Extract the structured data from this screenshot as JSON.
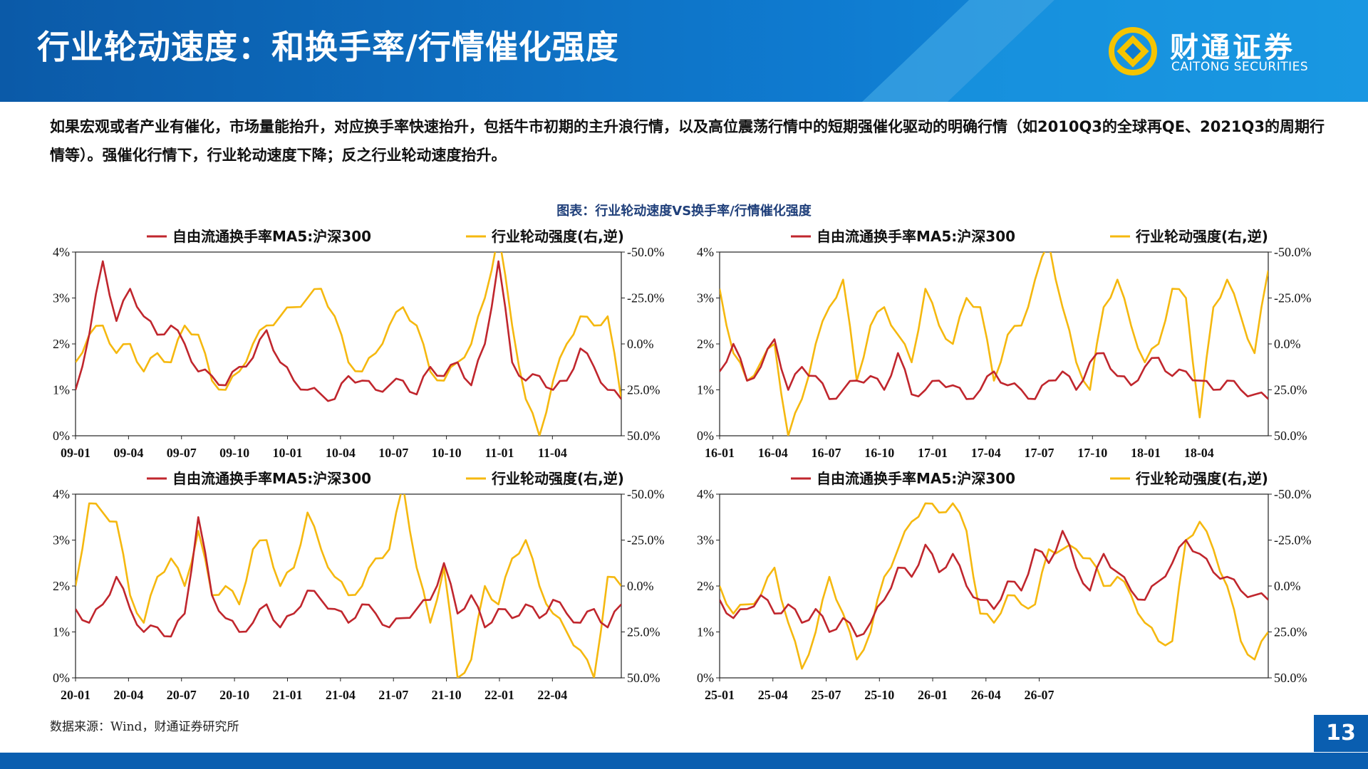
{
  "header": {
    "title": "行业轮动速度：和换手率/行情催化强度",
    "logo_cn": "财通证券",
    "logo_en": "CAITONG SECURITIES"
  },
  "body_text": "如果宏观或者产业有催化，市场量能抬升，对应换手率快速抬升，包括牛市初期的主升浪行情，以及高位震荡行情中的短期强催化驱动的明确行情（如2010Q3的全球再QE、2021Q3的周期行情等）。强催化行情下，行业轮动速度下降；反之行业轮动速度抬升。",
  "figure_title": "图表：行业轮动速度VS换手率/行情催化强度",
  "source": "数据来源：Wind，财通证券研究所",
  "page_number": "13",
  "colors": {
    "brand": "#0a5eb0",
    "turnover": "#c0262d",
    "rotation": "#f5b80f"
  },
  "chart_data": [
    {
      "type": "line",
      "legend": [
        "自由流通换手率MA5:沪深300",
        "行业轮动强度(右,逆)"
      ],
      "left_ticks": [
        "4%",
        "3%",
        "2%",
        "1%",
        "0%"
      ],
      "right_ticks": [
        "-50.0%",
        "-25.0%",
        "0.0%",
        "25.0%",
        "50.0%"
      ],
      "x_ticks": [
        "09-01",
        "09-04",
        "09-07",
        "09-10",
        "10-01",
        "10-04",
        "10-07",
        "10-10",
        "11-01",
        "11-04"
      ],
      "ylim_left": [
        0,
        4
      ],
      "ylim_right": [
        50,
        -50
      ],
      "right_inverted": true,
      "xlim": [
        0,
        40
      ],
      "series": [
        {
          "name": "自由流通换手率MA5:沪深300",
          "axis": "left",
          "x": [
            0,
            1,
            2,
            3,
            4,
            5,
            6,
            7,
            8,
            9,
            10,
            11,
            12,
            13,
            14,
            15,
            16,
            17,
            18,
            19,
            20,
            21,
            22,
            23,
            24,
            25,
            26,
            27,
            28,
            29,
            30,
            31,
            32,
            33,
            34,
            35,
            36,
            37,
            38,
            39,
            40
          ],
          "y": [
            1.0,
            2.2,
            3.8,
            2.5,
            3.2,
            2.6,
            2.2,
            2.4,
            2.0,
            1.4,
            1.3,
            1.1,
            1.5,
            1.7,
            2.3,
            1.6,
            1.2,
            1.0,
            0.9,
            0.8,
            1.3,
            1.2,
            1.0,
            1.1,
            1.2,
            0.9,
            1.5,
            1.3,
            1.6,
            1.1,
            2.0,
            3.8,
            1.6,
            1.2,
            1.3,
            1.0,
            1.2,
            1.9,
            1.5,
            1.0,
            0.8
          ]
        },
        {
          "name": "行业轮动强度(右,逆)",
          "axis": "right",
          "x": [
            0,
            1,
            2,
            3,
            4,
            5,
            6,
            7,
            8,
            9,
            10,
            11,
            12,
            13,
            14,
            15,
            16,
            17,
            18,
            19,
            20,
            21,
            22,
            23,
            24,
            25,
            26,
            27,
            28,
            29,
            30,
            31,
            32,
            33,
            34,
            35,
            36,
            37,
            38,
            39,
            40
          ],
          "y": [
            10,
            -5,
            -10,
            5,
            0,
            15,
            5,
            10,
            -10,
            -5,
            20,
            25,
            15,
            0,
            -10,
            -15,
            -20,
            -25,
            -30,
            -15,
            10,
            15,
            5,
            -10,
            -20,
            -10,
            15,
            20,
            10,
            0,
            -25,
            -60,
            -10,
            30,
            50,
            20,
            0,
            -15,
            -10,
            -15,
            30
          ]
        }
      ]
    },
    {
      "type": "line",
      "legend": [
        "自由流通换手率MA5:沪深300",
        "行业轮动强度(右,逆)"
      ],
      "left_ticks": [
        "4%",
        "3%",
        "2%",
        "1%",
        "0%"
      ],
      "right_ticks": [
        "-50.0%",
        "-25.0%",
        "0.0%",
        "25.0%",
        "50.0%"
      ],
      "x_ticks": [
        "16-01",
        "16-04",
        "16-07",
        "16-10",
        "17-01",
        "17-04",
        "17-07",
        "17-10",
        "18-01",
        "18-04"
      ],
      "ylim_left": [
        0,
        4
      ],
      "ylim_right": [
        50,
        -50
      ],
      "right_inverted": true,
      "xlim": [
        0,
        40
      ],
      "series": [
        {
          "name": "自由流通换手率MA5:沪深300",
          "axis": "left",
          "x": [
            0,
            1,
            2,
            3,
            4,
            5,
            6,
            7,
            8,
            9,
            10,
            11,
            12,
            13,
            14,
            15,
            16,
            17,
            18,
            19,
            20,
            21,
            22,
            23,
            24,
            25,
            26,
            27,
            28,
            29,
            30,
            31,
            32,
            33,
            34,
            35,
            36,
            37,
            38,
            39,
            40
          ],
          "y": [
            1.4,
            2.0,
            1.2,
            1.5,
            2.1,
            1.0,
            1.5,
            1.3,
            0.8,
            1.0,
            1.2,
            1.3,
            1.0,
            1.8,
            0.9,
            1.0,
            1.2,
            1.1,
            0.8,
            1.0,
            1.4,
            1.1,
            1.0,
            0.8,
            1.2,
            1.4,
            1.0,
            1.6,
            1.8,
            1.3,
            1.1,
            1.5,
            1.7,
            1.3,
            1.4,
            1.2,
            1.0,
            1.2,
            1.0,
            0.9,
            0.8
          ]
        },
        {
          "name": "行业轮动强度(右,逆)",
          "axis": "right",
          "x": [
            0,
            1,
            2,
            3,
            4,
            5,
            6,
            7,
            8,
            9,
            10,
            11,
            12,
            13,
            14,
            15,
            16,
            17,
            18,
            19,
            20,
            21,
            22,
            23,
            24,
            25,
            26,
            27,
            28,
            29,
            30,
            31,
            32,
            33,
            34,
            35,
            36,
            37,
            38,
            39,
            40
          ],
          "y": [
            -30,
            5,
            20,
            10,
            0,
            50,
            30,
            0,
            -20,
            -35,
            20,
            -10,
            -20,
            -5,
            10,
            -30,
            -10,
            0,
            -25,
            -20,
            20,
            -5,
            -10,
            -35,
            -55,
            -20,
            10,
            25,
            -20,
            -35,
            -10,
            10,
            0,
            -30,
            -25,
            40,
            -20,
            -35,
            -15,
            5,
            -40
          ]
        }
      ]
    },
    {
      "type": "line",
      "legend": [
        "自由流通换手率MA5:沪深300",
        "行业轮动强度(右,逆)"
      ],
      "left_ticks": [
        "4%",
        "3%",
        "2%",
        "1%",
        "0%"
      ],
      "right_ticks": [
        "-50.0%",
        "-25.0%",
        "0.0%",
        "25.0%",
        "50.0%"
      ],
      "x_ticks": [
        "20-01",
        "20-04",
        "20-07",
        "20-10",
        "21-01",
        "21-04",
        "21-07",
        "21-10",
        "22-01",
        "22-04"
      ],
      "ylim_left": [
        0,
        4
      ],
      "ylim_right": [
        50,
        -50
      ],
      "right_inverted": true,
      "xlim": [
        0,
        40
      ],
      "series": [
        {
          "name": "自由流通换手率MA5:沪深300",
          "axis": "left",
          "x": [
            0,
            1,
            2,
            3,
            4,
            5,
            6,
            7,
            8,
            9,
            10,
            11,
            12,
            13,
            14,
            15,
            16,
            17,
            18,
            19,
            20,
            21,
            22,
            23,
            24,
            25,
            26,
            27,
            28,
            29,
            30,
            31,
            32,
            33,
            34,
            35,
            36,
            37,
            38,
            39,
            40
          ],
          "y": [
            1.5,
            1.2,
            1.6,
            2.2,
            1.5,
            1.0,
            1.1,
            0.9,
            1.4,
            3.5,
            1.8,
            1.3,
            1.0,
            1.2,
            1.6,
            1.1,
            1.4,
            1.9,
            1.7,
            1.5,
            1.2,
            1.6,
            1.4,
            1.1,
            1.3,
            1.5,
            1.7,
            2.5,
            1.4,
            1.8,
            1.1,
            1.5,
            1.3,
            1.6,
            1.3,
            1.7,
            1.4,
            1.2,
            1.5,
            1.1,
            1.6
          ]
        },
        {
          "name": "行业轮动强度(右,逆)",
          "axis": "right",
          "x": [
            0,
            1,
            2,
            3,
            4,
            5,
            6,
            7,
            8,
            9,
            10,
            11,
            12,
            13,
            14,
            15,
            16,
            17,
            18,
            19,
            20,
            21,
            22,
            23,
            24,
            25,
            26,
            27,
            28,
            29,
            30,
            31,
            32,
            33,
            34,
            35,
            36,
            37,
            38,
            39,
            40
          ],
          "y": [
            0,
            -45,
            -40,
            -35,
            5,
            20,
            -5,
            -15,
            0,
            -30,
            5,
            0,
            10,
            -20,
            -25,
            0,
            -10,
            -40,
            -20,
            -5,
            5,
            0,
            -15,
            -20,
            -55,
            -10,
            20,
            -10,
            50,
            40,
            0,
            10,
            -15,
            -25,
            0,
            15,
            25,
            35,
            50,
            -5,
            0
          ]
        }
      ]
    },
    {
      "type": "line",
      "legend": [
        "自由流通换手率MA5:沪深300",
        "行业轮动强度(右,逆)"
      ],
      "left_ticks": [
        "4%",
        "3%",
        "2%",
        "1%",
        "0%"
      ],
      "right_ticks": [
        "-50.0%",
        "-25.0%",
        "0.0%",
        "25.0%",
        "50.0%"
      ],
      "x_ticks": [
        "25-01",
        "25-04",
        "25-07",
        "25-10",
        "26-01",
        "26-04",
        "26-07"
      ],
      "ylim_left": [
        0,
        4
      ],
      "ylim_right": [
        50,
        -50
      ],
      "right_inverted": true,
      "xlim": [
        0,
        40
      ],
      "series": [
        {
          "name": "自由流通换手率MA5:沪深300",
          "axis": "left",
          "x": [
            0,
            1,
            2,
            3,
            4,
            5,
            6,
            7,
            8,
            9,
            10,
            11,
            12,
            13,
            14,
            15,
            16,
            17,
            18,
            19,
            20,
            21,
            22,
            23,
            24,
            25,
            26,
            27,
            28,
            29,
            30,
            31,
            32,
            33,
            34,
            35,
            36,
            37,
            38,
            39,
            40
          ],
          "y": [
            1.7,
            1.3,
            1.5,
            1.8,
            1.4,
            1.6,
            1.2,
            1.5,
            1.0,
            1.3,
            0.9,
            1.2,
            1.7,
            2.4,
            2.2,
            2.9,
            2.3,
            2.7,
            2.0,
            1.7,
            1.5,
            2.1,
            1.9,
            2.8,
            2.5,
            3.2,
            2.4,
            1.9,
            2.7,
            2.3,
            1.9,
            1.7,
            2.1,
            2.5,
            3.0,
            2.7,
            2.3,
            2.2,
            1.9,
            1.8,
            1.7
          ]
        },
        {
          "name": "行业轮动强度(右,逆)",
          "axis": "right",
          "x": [
            0,
            1,
            2,
            3,
            4,
            5,
            6,
            7,
            8,
            9,
            10,
            11,
            12,
            13,
            14,
            15,
            16,
            17,
            18,
            19,
            20,
            21,
            22,
            23,
            24,
            25,
            26,
            27,
            28,
            29,
            30,
            31,
            32,
            33,
            34,
            35,
            36,
            37,
            38,
            39,
            40
          ],
          "y": [
            0,
            15,
            10,
            5,
            -10,
            20,
            45,
            25,
            -5,
            15,
            40,
            25,
            -5,
            -20,
            -35,
            -45,
            -40,
            -45,
            -30,
            15,
            20,
            5,
            10,
            10,
            -20,
            -20,
            -20,
            -15,
            0,
            -5,
            5,
            20,
            30,
            30,
            -25,
            -35,
            -20,
            0,
            30,
            40,
            25
          ]
        }
      ]
    }
  ]
}
